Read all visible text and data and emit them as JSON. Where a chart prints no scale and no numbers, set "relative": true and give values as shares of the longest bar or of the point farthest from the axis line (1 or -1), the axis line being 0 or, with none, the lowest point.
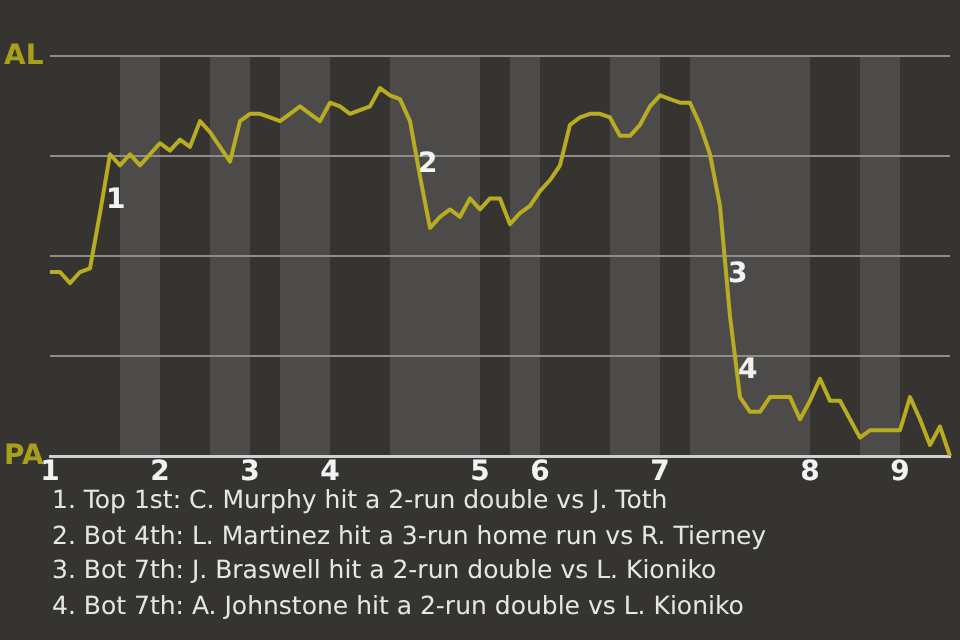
{
  "chart_data": {
    "type": "line",
    "relative": true,
    "categories": [
      "1",
      null,
      null,
      null,
      null,
      null,
      null,
      null,
      null,
      null,
      null,
      "2",
      null,
      null,
      null,
      null,
      null,
      null,
      null,
      null,
      "3",
      null,
      null,
      null,
      null,
      null,
      null,
      null,
      "4",
      null,
      null,
      null,
      null,
      null,
      null,
      null,
      null,
      null,
      null,
      null,
      null,
      null,
      null,
      "5",
      null,
      null,
      null,
      null,
      null,
      "6",
      null,
      null,
      null,
      null,
      null,
      null,
      null,
      null,
      null,
      null,
      null,
      "7",
      null,
      null,
      null,
      null,
      null,
      null,
      null,
      null,
      null,
      null,
      null,
      null,
      null,
      null,
      "8",
      null,
      null,
      null,
      null,
      null,
      null,
      null,
      null,
      "9",
      null,
      null,
      null,
      null,
      null
    ],
    "series": [
      {
        "color": "#b8ad22",
        "values": [
          0.5,
          0.5,
          0.47,
          0.5,
          0.51,
          0.66,
          0.82,
          0.79,
          0.82,
          0.79,
          0.82,
          0.85,
          0.83,
          0.86,
          0.84,
          0.91,
          0.88,
          0.84,
          0.8,
          0.91,
          0.93,
          0.93,
          0.92,
          0.91,
          0.93,
          0.95,
          0.93,
          0.91,
          0.96,
          0.95,
          0.93,
          0.94,
          0.95,
          1,
          0.98,
          0.97,
          0.91,
          0.76,
          0.62,
          0.65,
          0.67,
          0.65,
          0.7,
          0.67,
          0.7,
          0.7,
          0.63,
          0.66,
          0.68,
          0.72,
          0.75,
          0.79,
          0.9,
          0.92,
          0.93,
          0.93,
          0.92,
          0.87,
          0.87,
          0.9,
          0.95,
          0.98,
          0.97,
          0.96,
          0.96,
          0.9,
          0.82,
          0.68,
          0.38,
          0.16,
          0.12,
          0.12,
          0.16,
          0.16,
          0.16,
          0.1,
          0.15,
          0.21,
          0.15,
          0.15,
          0.1,
          0.05,
          0.07,
          0.07,
          0.07,
          0.07,
          0.16,
          0.1,
          0.03,
          0.08,
          0
        ]
      }
    ],
    "grid": "y",
    "legend": false,
    "marker": "none",
    "line_style": "solid",
    "annotations": [
      "AL",
      "PA",
      "1",
      "2",
      "3",
      "4",
      "1. Top 1st: C. Murphy hit a 2-run double vs J. Toth",
      "2. Bot 4th: L. Martinez hit a 3-run home run vs R. Tierney",
      "3. Bot 7th: J. Braswell hit a 2-run double vs L. Kioniko",
      "4. Bot 7th: A. Johnstone hit a 2-run double vs L. Kioniko"
    ]
  }
}
